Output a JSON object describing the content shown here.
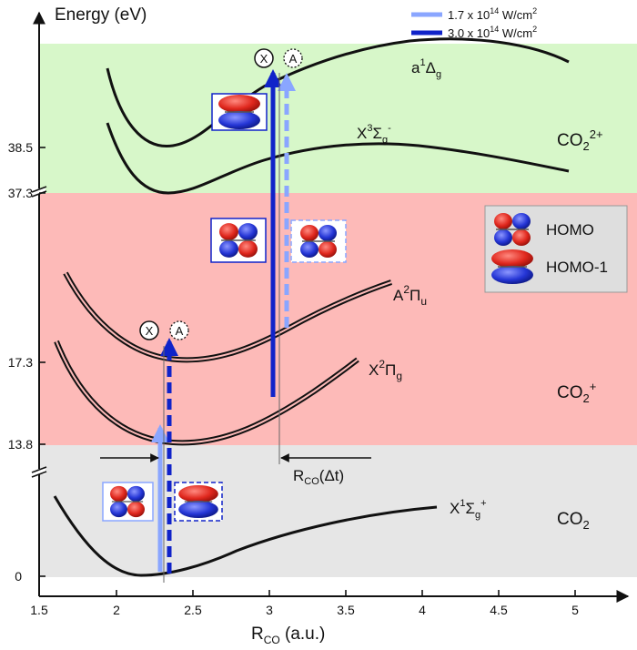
{
  "axes": {
    "ylabel": "Energy (eV)",
    "xlabel": "R",
    "xlabel_sub": "CO",
    "xlabel_unit": " (a.u.)",
    "x_ticks": [
      "1.5",
      "2",
      "2.5",
      "3",
      "3.5",
      "4",
      "4.5",
      "5"
    ],
    "y_ticks": [
      "38.5",
      "37.3",
      "17.3",
      "13.8",
      "0"
    ],
    "xlim": [
      1.5,
      5.5
    ],
    "broken_y_axis": true
  },
  "legend": {
    "intensities": [
      {
        "text": "1.7 x 10",
        "exp": "14",
        "unit": " W/cm",
        "unit_exp": "2",
        "color": "#8aa6ff"
      },
      {
        "text": "3.0 x 10",
        "exp": "14",
        "unit": " W/cm",
        "unit_exp": "2",
        "color": "#1023c9"
      }
    ],
    "orbitals": [
      {
        "label": "HOMO",
        "icon": "homo-orbital-icon"
      },
      {
        "label": "HOMO-1",
        "icon": "homo-1-orbital-icon"
      }
    ]
  },
  "regions": [
    {
      "species": "CO",
      "charge": "",
      "color": "#e6e6e6"
    },
    {
      "species": "CO",
      "charge": "+",
      "color": "#fdbab8"
    },
    {
      "species": "CO",
      "charge": "2+",
      "color": "#d7f7c9"
    }
  ],
  "states": {
    "neutral": {
      "main": "X",
      "sup1": "1",
      "term": "Σ",
      "sub": "g",
      "sup2": "+"
    },
    "cation_ground": {
      "main": "X",
      "sup1": "2",
      "term": "Π",
      "sub": "g"
    },
    "cation_excited": {
      "main": "A",
      "sup1": "2",
      "term": "Π",
      "sub": "u"
    },
    "dication_ground": {
      "main": "X",
      "sup1": "3",
      "term": "Σ",
      "sub": "g",
      "sup2": "-"
    },
    "dication_excited": {
      "main": "a",
      "sup1": "1",
      "term": "Δ",
      "sub": "g"
    }
  },
  "channel_markers": {
    "x": "X",
    "a": "A"
  },
  "annotations": {
    "delta_r": {
      "main": "R",
      "sub": "CO",
      "rest": "(Δt)"
    }
  },
  "colors": {
    "light_arrow": "#8aa6ff",
    "dark_arrow": "#1023c9",
    "orbital_red": "#e0281e",
    "orbital_blue": "#2536d6"
  }
}
